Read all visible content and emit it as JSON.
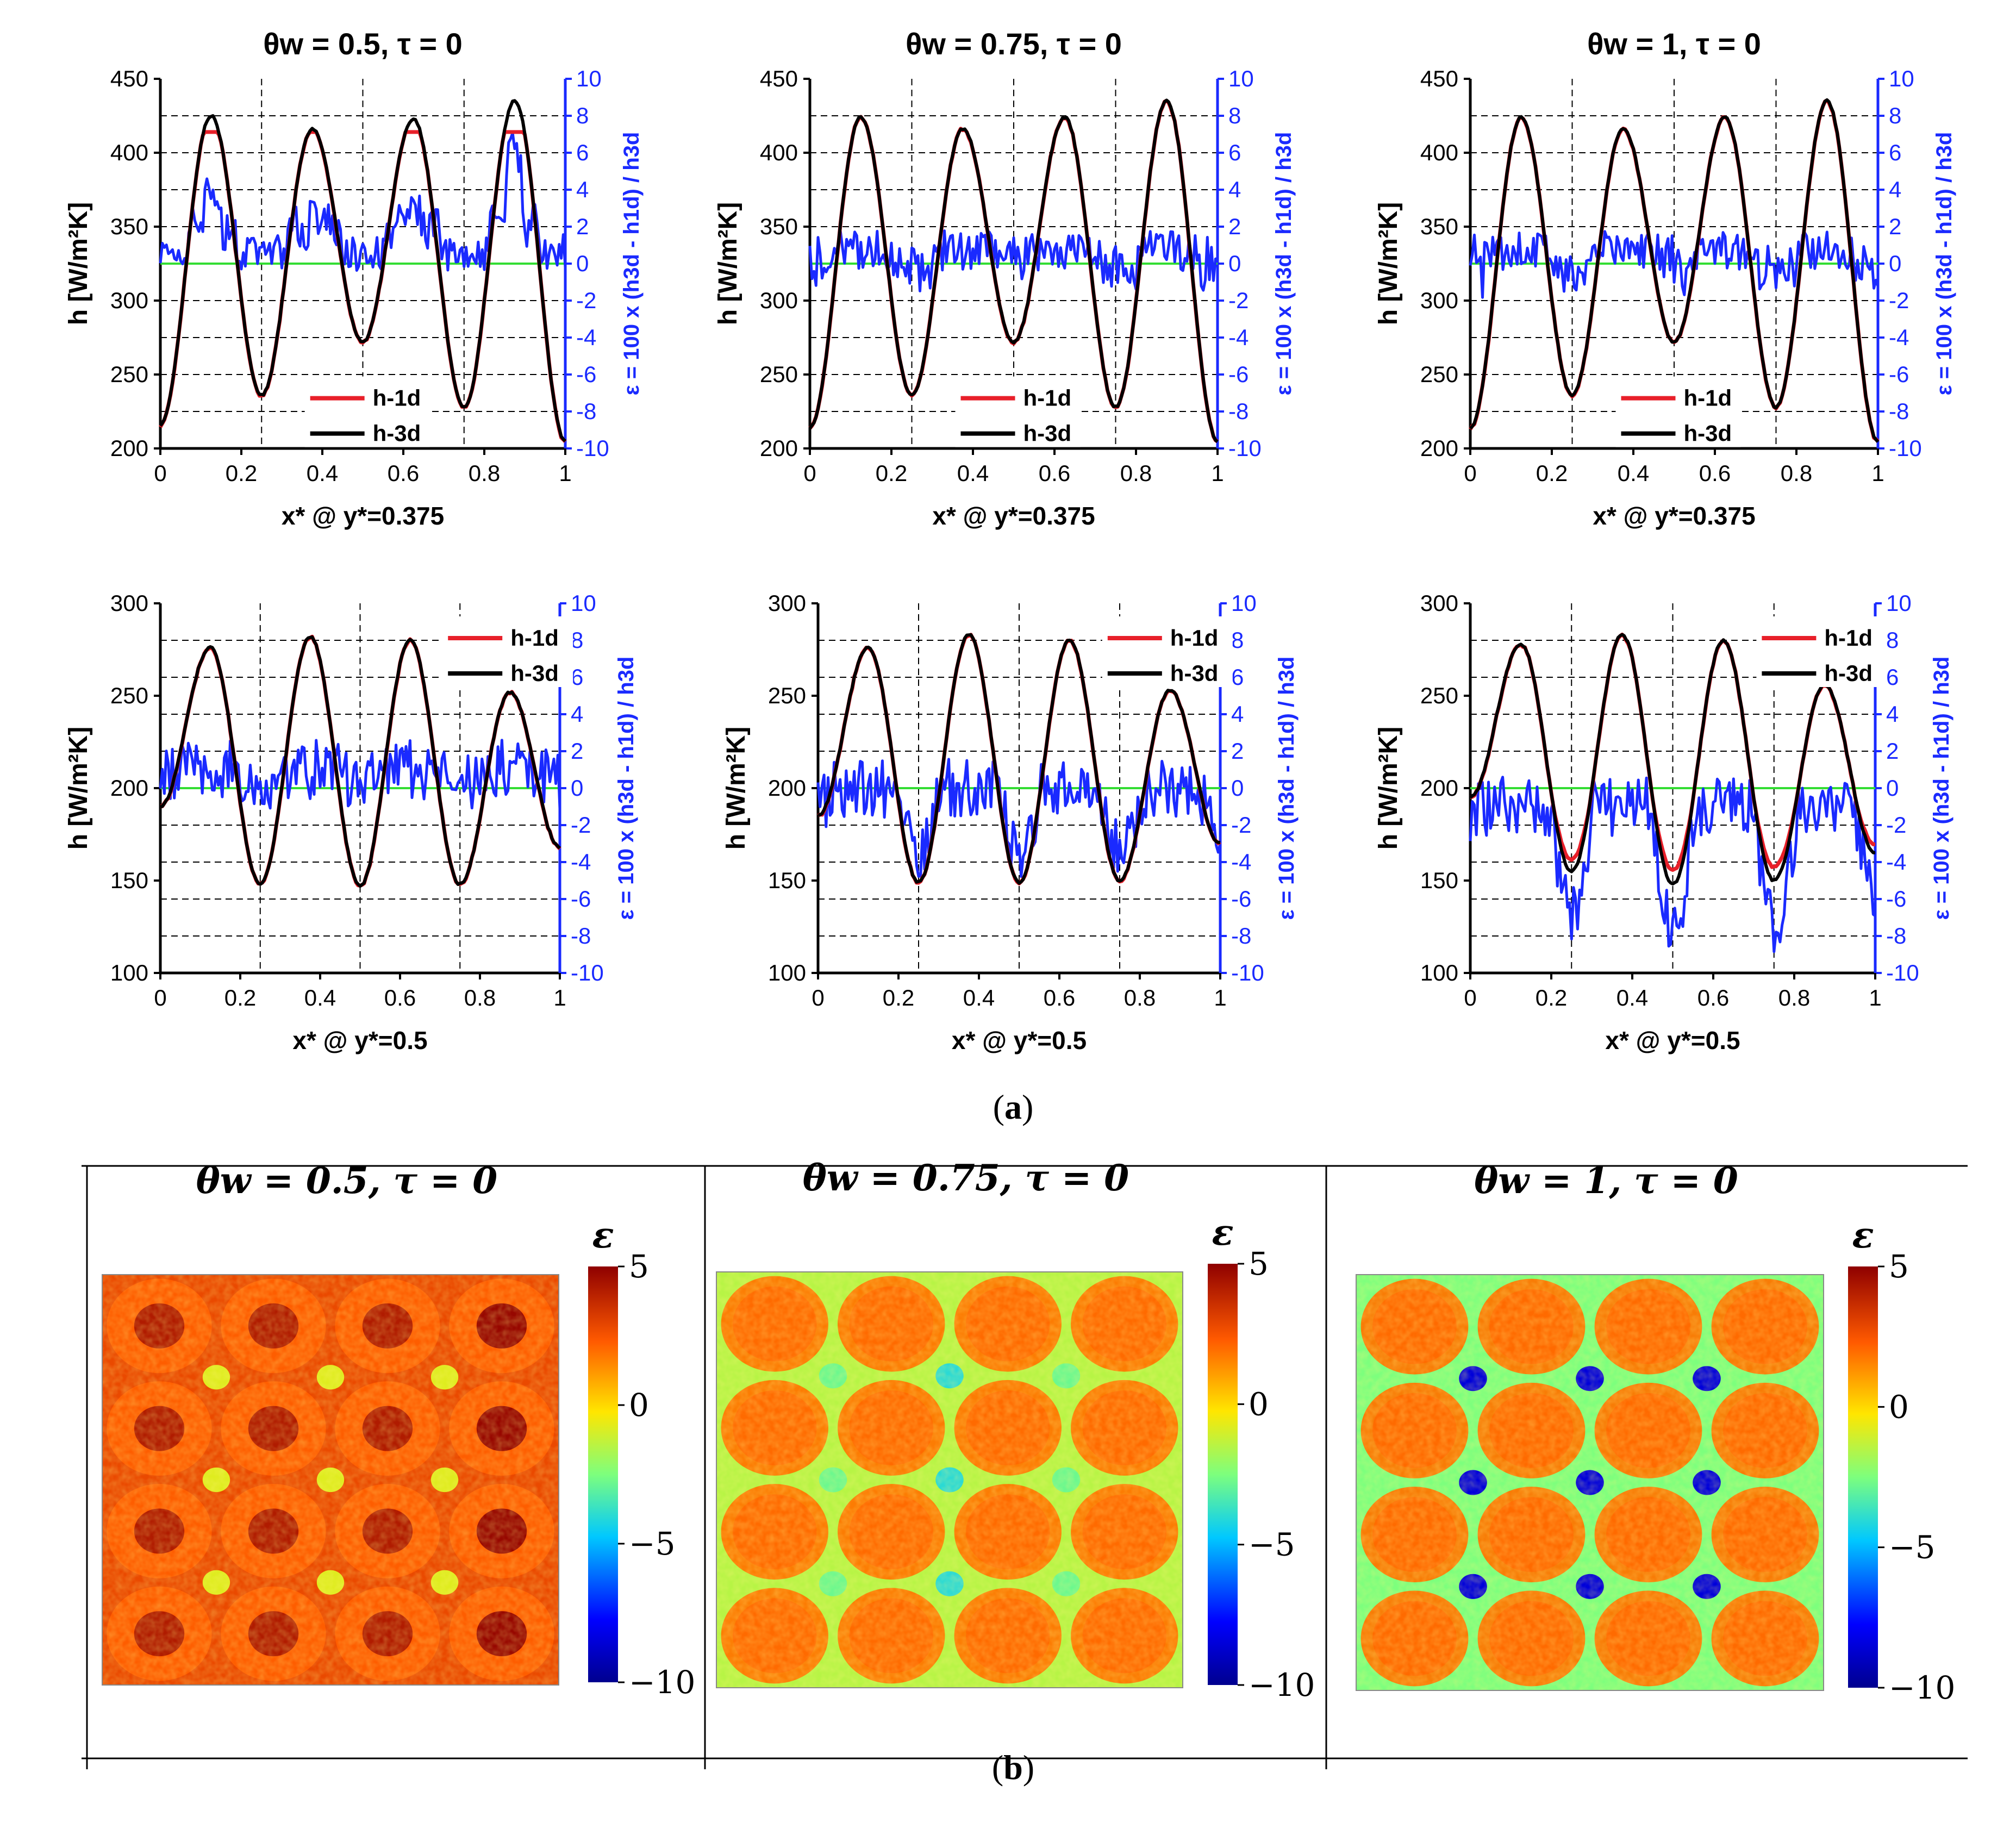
{
  "panel_a_label": "a",
  "panel_b_label": "b",
  "legend": {
    "h1d": "h-1d",
    "h3d": "h-3d"
  },
  "colors": {
    "h1d": "#e8202a",
    "h3d": "#000000",
    "eps": "#1a2aff",
    "zero": "#33dd33"
  },
  "left_axis_label": "h [W/m²K]",
  "right_axis_label_top": "ε = 100 x (h3d - h1d) / h3d",
  "right_axis_label_bottom": "ε = 100 x (h3d - h1d) / h3d",
  "chart_data": [
    {
      "type": "line",
      "title": "θw = 0.5, τ = 0",
      "xlabel": "x* @ y*=0.375",
      "ylabel": "h [W/m²K]",
      "y2label": "ε = 100 x (h3d - h1d) / h3d",
      "xlim": [
        0,
        1
      ],
      "ylim": [
        200,
        450
      ],
      "y2lim": [
        -10,
        10
      ],
      "xticks": [
        "0",
        "0.2",
        "0.4",
        "0.6",
        "0.8",
        "1"
      ],
      "yticks": [
        "200",
        "250",
        "300",
        "350",
        "400",
        "450"
      ],
      "y2ticks": [
        "-10",
        "-8",
        "-6",
        "-4",
        "-2",
        "0",
        "2",
        "4",
        "6",
        "8",
        "10"
      ],
      "variant": "row1-clip",
      "peaks": [
        425,
        416,
        423,
        435
      ],
      "mins": [
        236,
        272,
        228
      ],
      "ends": [
        216,
        205
      ],
      "eps_mean": 2,
      "eps_spike": 7
    },
    {
      "type": "line",
      "title": "θw = 0.75, τ = 0",
      "xlabel": "x* @ y*=0.375",
      "ylabel": "h [W/m²K]",
      "y2label": "ε = 100 x (h3d - h1d) / h3d",
      "xlim": [
        0,
        1
      ],
      "ylim": [
        200,
        450
      ],
      "y2lim": [
        -10,
        10
      ],
      "xticks": [
        "0",
        "0.2",
        "0.4",
        "0.6",
        "0.8",
        "1"
      ],
      "yticks": [
        "200",
        "250",
        "300",
        "350",
        "400",
        "450"
      ],
      "y2ticks": [
        "-10",
        "-8",
        "-6",
        "-4",
        "-2",
        "0",
        "2",
        "4",
        "6",
        "8",
        "10"
      ],
      "variant": "row1",
      "peaks": [
        424,
        416,
        424,
        435
      ],
      "mins": [
        236,
        272,
        228
      ],
      "ends": [
        214,
        205
      ],
      "eps_mean": 0.5,
      "eps_spike": 2
    },
    {
      "type": "line",
      "title": "θw = 1, τ = 0",
      "xlabel": "x* @ y*=0.375",
      "ylabel": "h [W/m²K]",
      "y2label": "ε = 100 x (h3d - h1d) / h3d",
      "xlim": [
        0,
        1
      ],
      "ylim": [
        200,
        450
      ],
      "y2lim": [
        -10,
        10
      ],
      "xticks": [
        "0",
        "0.2",
        "0.4",
        "0.6",
        "0.8",
        "1"
      ],
      "yticks": [
        "200",
        "250",
        "300",
        "350",
        "400",
        "450"
      ],
      "y2ticks": [
        "-10",
        "-8",
        "-6",
        "-4",
        "-2",
        "0",
        "2",
        "4",
        "6",
        "8",
        "10"
      ],
      "variant": "row1",
      "peaks": [
        424,
        416,
        424,
        435
      ],
      "mins": [
        236,
        272,
        228
      ],
      "ends": [
        214,
        205
      ],
      "eps_mean": 0.5,
      "eps_spike": 2
    },
    {
      "type": "line",
      "title": "",
      "xlabel": "x* @ y*=0.5",
      "ylabel": "h [W/m²K]",
      "y2label": "ε = 100 x (h3d - h1d) / h3d",
      "xlim": [
        0,
        1
      ],
      "ylim": [
        100,
        300
      ],
      "y2lim": [
        -10,
        10
      ],
      "xticks": [
        "0",
        "0.2",
        "0.4",
        "0.6",
        "0.8",
        "1"
      ],
      "yticks": [
        "100",
        "150",
        "200",
        "250",
        "300"
      ],
      "y2ticks": [
        "-10",
        "-8",
        "-6",
        "-4",
        "-2",
        "0",
        "2",
        "4",
        "6",
        "8",
        "10"
      ],
      "variant": "row2",
      "peaks": [
        276,
        282,
        280,
        252
      ],
      "mins": [
        148,
        147,
        148
      ],
      "ends": [
        190,
        168
      ],
      "eps_mean": 1,
      "eps_dip": -1
    },
    {
      "type": "line",
      "title": "",
      "xlabel": "x* @ y*=0.5",
      "ylabel": "h [W/m²K]",
      "y2label": "ε = 100 x (h3d - h1d) / h3d",
      "xlim": [
        0,
        1
      ],
      "ylim": [
        100,
        300
      ],
      "y2lim": [
        -10,
        10
      ],
      "xticks": [
        "0",
        "0.2",
        "0.4",
        "0.6",
        "0.8",
        "1"
      ],
      "yticks": [
        "100",
        "150",
        "200",
        "250",
        "300"
      ],
      "y2ticks": [
        "-10",
        "-8",
        "-6",
        "-4",
        "-2",
        "0",
        "2",
        "4",
        "6",
        "8",
        "10"
      ],
      "variant": "row2",
      "peaks": [
        276,
        283,
        280,
        253
      ],
      "mins": [
        149,
        149,
        150
      ],
      "ends": [
        185,
        170
      ],
      "eps_mean": 0,
      "eps_dip": -4
    },
    {
      "type": "line",
      "title": "",
      "xlabel": "x* @ y*=0.5",
      "ylabel": "h [W/m²K]",
      "y2label": "ε = 100 x (h3d - h1d) / h3d",
      "xlim": [
        0,
        1
      ],
      "ylim": [
        100,
        300
      ],
      "y2lim": [
        -10,
        10
      ],
      "xticks": [
        "0",
        "0.2",
        "0.4",
        "0.6",
        "0.8",
        "1"
      ],
      "yticks": [
        "100",
        "150",
        "200",
        "250",
        "300"
      ],
      "y2ticks": [
        "-10",
        "-8",
        "-6",
        "-4",
        "-2",
        "0",
        "2",
        "4",
        "6",
        "8",
        "10"
      ],
      "variant": "row2-sep",
      "peaks": [
        278,
        283,
        280,
        256
      ],
      "mins": [
        155,
        148,
        150
      ],
      "ends": [
        195,
        165
      ],
      "eps_mean": -1,
      "eps_dip": -8
    },
    {
      "type": "heatmap",
      "title": "θw = 0.5, τ = 0",
      "colorbar_label": "ε",
      "clim": [
        -10,
        5
      ],
      "cticks": [
        "5",
        "0",
        "−5",
        "−10"
      ],
      "grid": [
        4,
        4
      ],
      "pattern": "hot-centers"
    },
    {
      "type": "heatmap",
      "title": "θw = 0.75, τ = 0",
      "colorbar_label": "ε",
      "clim": [
        -10,
        5
      ],
      "cticks": [
        "5",
        "0",
        "−5",
        "−10"
      ],
      "grid": [
        4,
        4
      ],
      "pattern": "mild"
    },
    {
      "type": "heatmap",
      "title": "θw = 1, τ = 0",
      "colorbar_label": "ε",
      "clim": [
        -10,
        5
      ],
      "cticks": [
        "5",
        "0",
        "−5",
        "−10"
      ],
      "grid": [
        4,
        4
      ],
      "pattern": "blue-corners"
    }
  ]
}
